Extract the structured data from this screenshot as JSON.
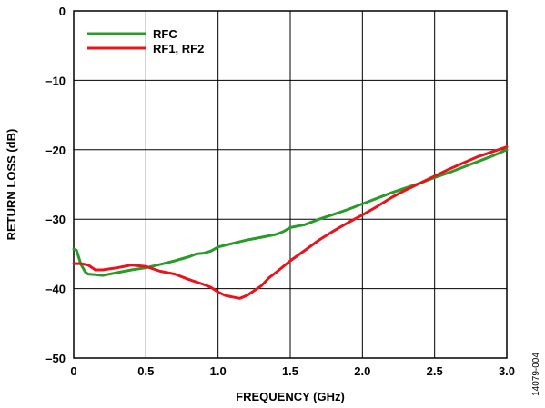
{
  "chart_data": {
    "type": "line",
    "title": "",
    "xlabel": "FREQUENCY (GHz)",
    "ylabel": "RETURN LOSS (dB)",
    "xlim": [
      0,
      3.0
    ],
    "ylim": [
      -50,
      0
    ],
    "xticks": [
      "0",
      "0.5",
      "1.0",
      "1.5",
      "2.0",
      "2.5",
      "3.0"
    ],
    "yticks": [
      "0",
      "–10",
      "–20",
      "–30",
      "–40",
      "–50"
    ],
    "grid": true,
    "legend_position": "top-left",
    "figure_id": "14079-004",
    "series": [
      {
        "name": "RFC",
        "color": "#2a9a2a",
        "x": [
          0,
          0.02,
          0.05,
          0.08,
          0.1,
          0.15,
          0.2,
          0.3,
          0.4,
          0.5,
          0.6,
          0.7,
          0.8,
          0.85,
          0.9,
          0.95,
          1.0,
          1.1,
          1.2,
          1.3,
          1.4,
          1.45,
          1.5,
          1.6,
          1.7,
          1.8,
          1.9,
          2.0,
          2.1,
          2.2,
          2.3,
          2.4,
          2.5,
          2.6,
          2.7,
          2.8,
          2.9,
          3.0
        ],
        "y": [
          -34.3,
          -34.5,
          -36.5,
          -37.6,
          -37.9,
          -38.0,
          -38.1,
          -37.7,
          -37.3,
          -37.0,
          -36.5,
          -36.0,
          -35.4,
          -35.0,
          -34.9,
          -34.6,
          -34.0,
          -33.5,
          -33.0,
          -32.6,
          -32.2,
          -31.8,
          -31.2,
          -30.8,
          -30.0,
          -29.3,
          -28.6,
          -27.8,
          -27.0,
          -26.2,
          -25.5,
          -24.8,
          -24.0,
          -23.3,
          -22.5,
          -21.7,
          -20.9,
          -20.0
        ]
      },
      {
        "name": "RF1, RF2",
        "color": "#e8141c",
        "x": [
          0,
          0.05,
          0.1,
          0.15,
          0.2,
          0.3,
          0.4,
          0.5,
          0.6,
          0.7,
          0.8,
          0.9,
          0.95,
          1.0,
          1.05,
          1.1,
          1.15,
          1.2,
          1.25,
          1.3,
          1.35,
          1.4,
          1.5,
          1.6,
          1.7,
          1.8,
          1.9,
          2.0,
          2.1,
          2.2,
          2.3,
          2.4,
          2.5,
          2.6,
          2.7,
          2.8,
          2.9,
          3.0
        ],
        "y": [
          -36.4,
          -36.4,
          -36.6,
          -37.3,
          -37.3,
          -37.0,
          -36.6,
          -36.8,
          -37.5,
          -37.9,
          -38.7,
          -39.4,
          -39.8,
          -40.5,
          -41.0,
          -41.2,
          -41.4,
          -41.0,
          -40.3,
          -39.6,
          -38.5,
          -37.7,
          -36.0,
          -34.5,
          -33.0,
          -31.7,
          -30.5,
          -29.4,
          -28.2,
          -26.9,
          -25.8,
          -24.8,
          -23.8,
          -22.8,
          -21.9,
          -21.0,
          -20.3,
          -19.6
        ]
      }
    ]
  }
}
